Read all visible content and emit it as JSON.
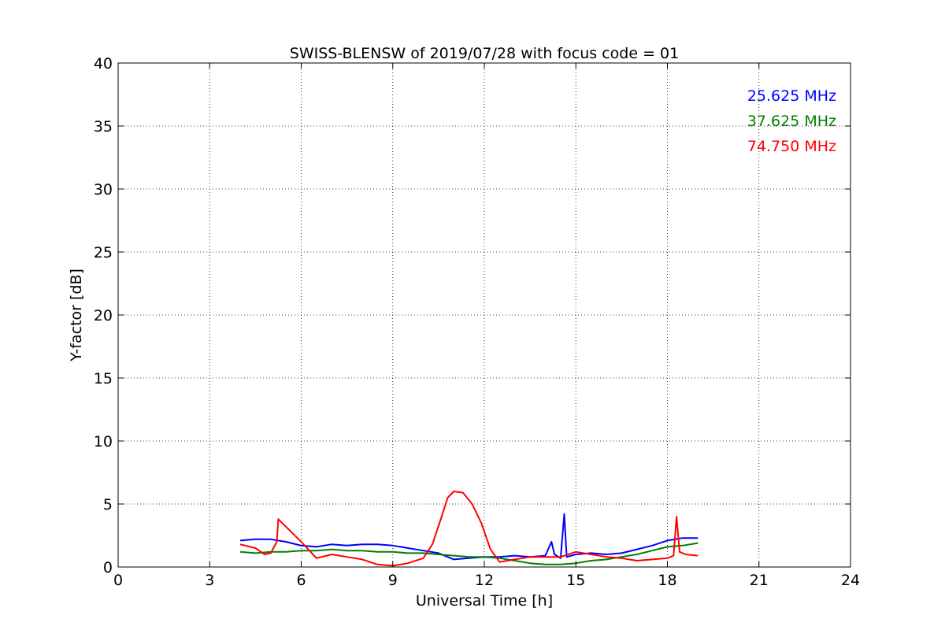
{
  "chart_data": {
    "type": "line",
    "title": "SWISS-BLENSW of 2019/07/28 with focus code = 01",
    "xlabel": "Universal Time [h]",
    "ylabel": "Y-factor [dB]",
    "xlim": [
      0,
      24
    ],
    "ylim": [
      0,
      40
    ],
    "xticks": [
      "0",
      "3",
      "6",
      "9",
      "12",
      "15",
      "18",
      "21",
      "24"
    ],
    "yticks": [
      "0",
      "5",
      "10",
      "15",
      "20",
      "25",
      "30",
      "35",
      "40"
    ],
    "grid": true,
    "legend_position": "top-right",
    "series": [
      {
        "name": "25.625 MHz",
        "color": "#0000ff",
        "x": [
          4.0,
          4.5,
          5.0,
          5.5,
          6.0,
          6.5,
          7.0,
          7.5,
          8.0,
          8.5,
          9.0,
          9.5,
          10.0,
          10.5,
          10.7,
          11.0,
          11.5,
          12.0,
          12.5,
          13.0,
          13.5,
          14.0,
          14.2,
          14.3,
          14.5,
          14.62,
          14.7,
          15.0,
          15.5,
          16.0,
          16.5,
          17.0,
          17.5,
          18.0,
          18.5,
          19.0
        ],
        "y": [
          2.1,
          2.2,
          2.2,
          2.0,
          1.7,
          1.6,
          1.8,
          1.7,
          1.8,
          1.8,
          1.7,
          1.5,
          1.3,
          1.1,
          0.9,
          0.6,
          0.7,
          0.8,
          0.8,
          0.9,
          0.8,
          0.9,
          2.0,
          1.0,
          0.7,
          4.2,
          0.8,
          1.0,
          1.1,
          1.0,
          1.1,
          1.4,
          1.7,
          2.1,
          2.3,
          2.3
        ]
      },
      {
        "name": "37.625 MHz",
        "color": "#008000",
        "x": [
          4.0,
          4.5,
          5.0,
          5.5,
          6.0,
          6.5,
          7.0,
          7.5,
          8.0,
          8.5,
          9.0,
          9.5,
          10.0,
          10.5,
          11.0,
          11.5,
          12.0,
          12.5,
          13.0,
          13.5,
          14.0,
          14.5,
          15.0,
          15.5,
          16.0,
          16.5,
          17.0,
          17.5,
          18.0,
          18.5,
          19.0
        ],
        "y": [
          1.2,
          1.1,
          1.2,
          1.2,
          1.3,
          1.3,
          1.4,
          1.3,
          1.3,
          1.2,
          1.2,
          1.1,
          1.1,
          1.0,
          0.9,
          0.8,
          0.8,
          0.7,
          0.5,
          0.3,
          0.2,
          0.2,
          0.3,
          0.5,
          0.6,
          0.8,
          1.0,
          1.3,
          1.6,
          1.7,
          1.9
        ]
      },
      {
        "name": "74.750 MHz",
        "color": "#ff0000",
        "x": [
          4.0,
          4.5,
          4.8,
          5.0,
          5.2,
          5.25,
          5.5,
          6.0,
          6.5,
          7.0,
          7.5,
          8.0,
          8.5,
          9.0,
          9.5,
          10.0,
          10.3,
          10.6,
          10.8,
          11.0,
          11.3,
          11.6,
          11.9,
          12.2,
          12.5,
          13.0,
          13.5,
          14.0,
          14.5,
          15.0,
          15.5,
          16.0,
          16.5,
          17.0,
          17.5,
          18.0,
          18.2,
          18.3,
          18.4,
          18.6,
          19.0
        ],
        "y": [
          1.8,
          1.5,
          1.0,
          1.1,
          2.0,
          3.8,
          3.2,
          2.0,
          0.7,
          1.0,
          0.8,
          0.6,
          0.2,
          0.1,
          0.3,
          0.7,
          1.8,
          4.0,
          5.5,
          6.0,
          5.9,
          5.0,
          3.5,
          1.4,
          0.4,
          0.6,
          0.8,
          0.8,
          0.8,
          1.2,
          1.0,
          0.8,
          0.7,
          0.5,
          0.6,
          0.7,
          0.9,
          4.0,
          1.2,
          1.0,
          0.9
        ]
      }
    ]
  }
}
